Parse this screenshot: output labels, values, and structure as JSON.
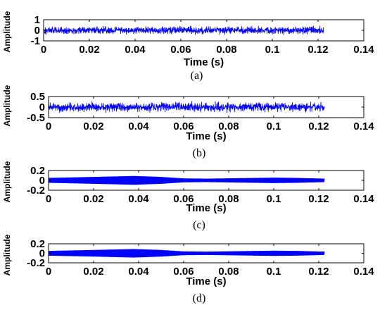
{
  "chart_data": [
    {
      "type": "line",
      "caption": "(a)",
      "xlabel": "Time (s)",
      "ylabel": "Amplitude",
      "xlim": [
        0,
        0.14
      ],
      "ylim": [
        -1,
        1
      ],
      "xticks": [
        0,
        0.02,
        0.04,
        0.06,
        0.08,
        0.1,
        0.12,
        0.14
      ],
      "xtick_labels": [
        "0",
        "0.02",
        "0.04",
        "0.06",
        "0.08",
        "0.1",
        "0.12",
        "0.14"
      ],
      "yticks": [
        -1,
        0,
        1
      ],
      "ytick_labels": [
        "-1",
        "0",
        "1"
      ],
      "signal": {
        "kind": "noise",
        "x_end": 0.1225,
        "amplitude_range": [
          -0.5,
          0.5
        ],
        "color": "#0000ff"
      }
    },
    {
      "type": "line",
      "caption": "(b)",
      "xlabel": "Time (s)",
      "ylabel": "Amplitude",
      "xlim": [
        0,
        0.14
      ],
      "ylim": [
        -0.5,
        0.5
      ],
      "xticks": [
        0,
        0.02,
        0.04,
        0.06,
        0.08,
        0.1,
        0.12,
        0.14
      ],
      "xtick_labels": [
        "0",
        "0.02",
        "0.04",
        "0.06",
        "0.08",
        "0.1",
        "0.12",
        "0.14"
      ],
      "yticks": [
        -0.5,
        0,
        0.5
      ],
      "ytick_labels": [
        "-0.5",
        "0",
        "0.5"
      ],
      "signal": {
        "kind": "noise",
        "x_end": 0.1225,
        "amplitude_range": [
          -0.3,
          0.3
        ],
        "color": "#0000ff"
      }
    },
    {
      "type": "line",
      "caption": "(c)",
      "xlabel": "Time (s)",
      "ylabel": "Amplitude",
      "xlim": [
        0,
        0.14
      ],
      "ylim": [
        -0.2,
        0.2
      ],
      "xticks": [
        0,
        0.02,
        0.04,
        0.06,
        0.08,
        0.1,
        0.12,
        0.14
      ],
      "xtick_labels": [
        "0",
        "0.02",
        "0.04",
        "0.06",
        "0.08",
        "0.1",
        "0.12",
        "0.14"
      ],
      "yticks": [
        -0.2,
        0,
        0.2
      ],
      "ytick_labels": [
        "-0.2",
        "0",
        "0.2"
      ],
      "signal": {
        "kind": "envelope",
        "x_end": 0.1225,
        "envelope": [
          [
            0,
            0.05
          ],
          [
            0.02,
            0.07
          ],
          [
            0.038,
            0.09
          ],
          [
            0.05,
            0.07
          ],
          [
            0.06,
            0.04
          ],
          [
            0.07,
            0.035
          ],
          [
            0.085,
            0.045
          ],
          [
            0.1,
            0.055
          ],
          [
            0.11,
            0.05
          ],
          [
            0.1225,
            0.035
          ]
        ],
        "color": "#0000ff"
      }
    },
    {
      "type": "line",
      "caption": "(d)",
      "xlabel": "Time (s)",
      "ylabel": "Amplitude",
      "xlim": [
        0,
        0.14
      ],
      "ylim": [
        -0.2,
        0.2
      ],
      "xticks": [
        0,
        0.02,
        0.04,
        0.06,
        0.08,
        0.1,
        0.12,
        0.14
      ],
      "xtick_labels": [
        "0",
        "0.02",
        "0.04",
        "0.06",
        "0.08",
        "0.1",
        "0.12",
        "0.14"
      ],
      "yticks": [
        -0.2,
        0,
        0.2
      ],
      "ytick_labels": [
        "-0.2",
        "0",
        "0.2"
      ],
      "signal": {
        "kind": "envelope",
        "x_end": 0.1225,
        "envelope": [
          [
            0,
            0.05
          ],
          [
            0.02,
            0.07
          ],
          [
            0.038,
            0.09
          ],
          [
            0.05,
            0.07
          ],
          [
            0.06,
            0.04
          ],
          [
            0.07,
            0.035
          ],
          [
            0.085,
            0.045
          ],
          [
            0.1,
            0.055
          ],
          [
            0.11,
            0.05
          ],
          [
            0.1225,
            0.035
          ]
        ],
        "color": "#0000ff"
      }
    }
  ]
}
